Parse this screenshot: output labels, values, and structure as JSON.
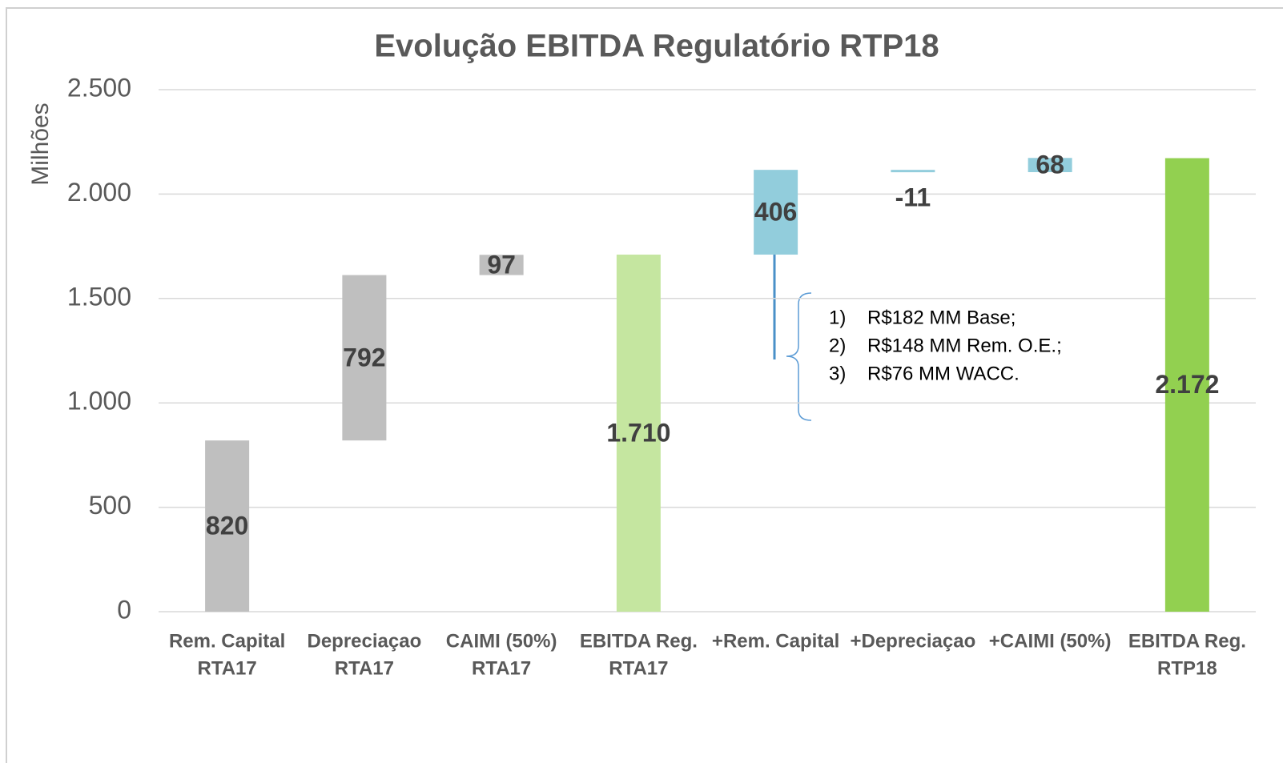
{
  "chart_data": {
    "type": "waterfall",
    "title": "Evolução EBITDA Regulatório RTP18",
    "y_label": "Milhões",
    "categories": [
      [
        "Rem. Capital",
        "RTA17"
      ],
      [
        "Depreciaçao",
        "RTA17"
      ],
      [
        "CAIMI (50%)",
        "RTA17"
      ],
      [
        "EBITDA Reg.",
        "RTA17"
      ],
      [
        "+Rem. Capital"
      ],
      [
        "+Depreciaçao"
      ],
      [
        "+CAIMI (50%)"
      ],
      [
        "EBITDA Reg.",
        "RTP18"
      ]
    ],
    "values": [
      820,
      792,
      97,
      1710,
      406,
      -11,
      68,
      2172
    ],
    "value_labels": [
      "820",
      "792",
      "97",
      "1.710",
      "406",
      "-11",
      "68",
      "2.172"
    ],
    "totals": [
      false,
      false,
      false,
      true,
      false,
      false,
      false,
      true
    ],
    "colors": [
      "#bfbfbf",
      "#bfbfbf",
      "#bfbfbf",
      "#c5e6a0",
      "#92cddc",
      "#92cddc",
      "#92cddc",
      "#92d050"
    ],
    "ylim": [
      0,
      2500
    ],
    "yticks": [
      0,
      500,
      {
        "value": 1000,
        "label": "1.000"
      },
      {
        "value": 1500,
        "label": "1.500"
      },
      {
        "value": 2000,
        "label": "2.000"
      },
      {
        "value": 2500,
        "label": "2.500"
      }
    ],
    "grid": true,
    "annotations": [
      {
        "number": "1)",
        "text": "R$182 MM Base;"
      },
      {
        "number": "2)",
        "text": "R$148 MM Rem. O.E.;"
      },
      {
        "number": "3)",
        "text": "R$76 MM WACC."
      }
    ]
  }
}
